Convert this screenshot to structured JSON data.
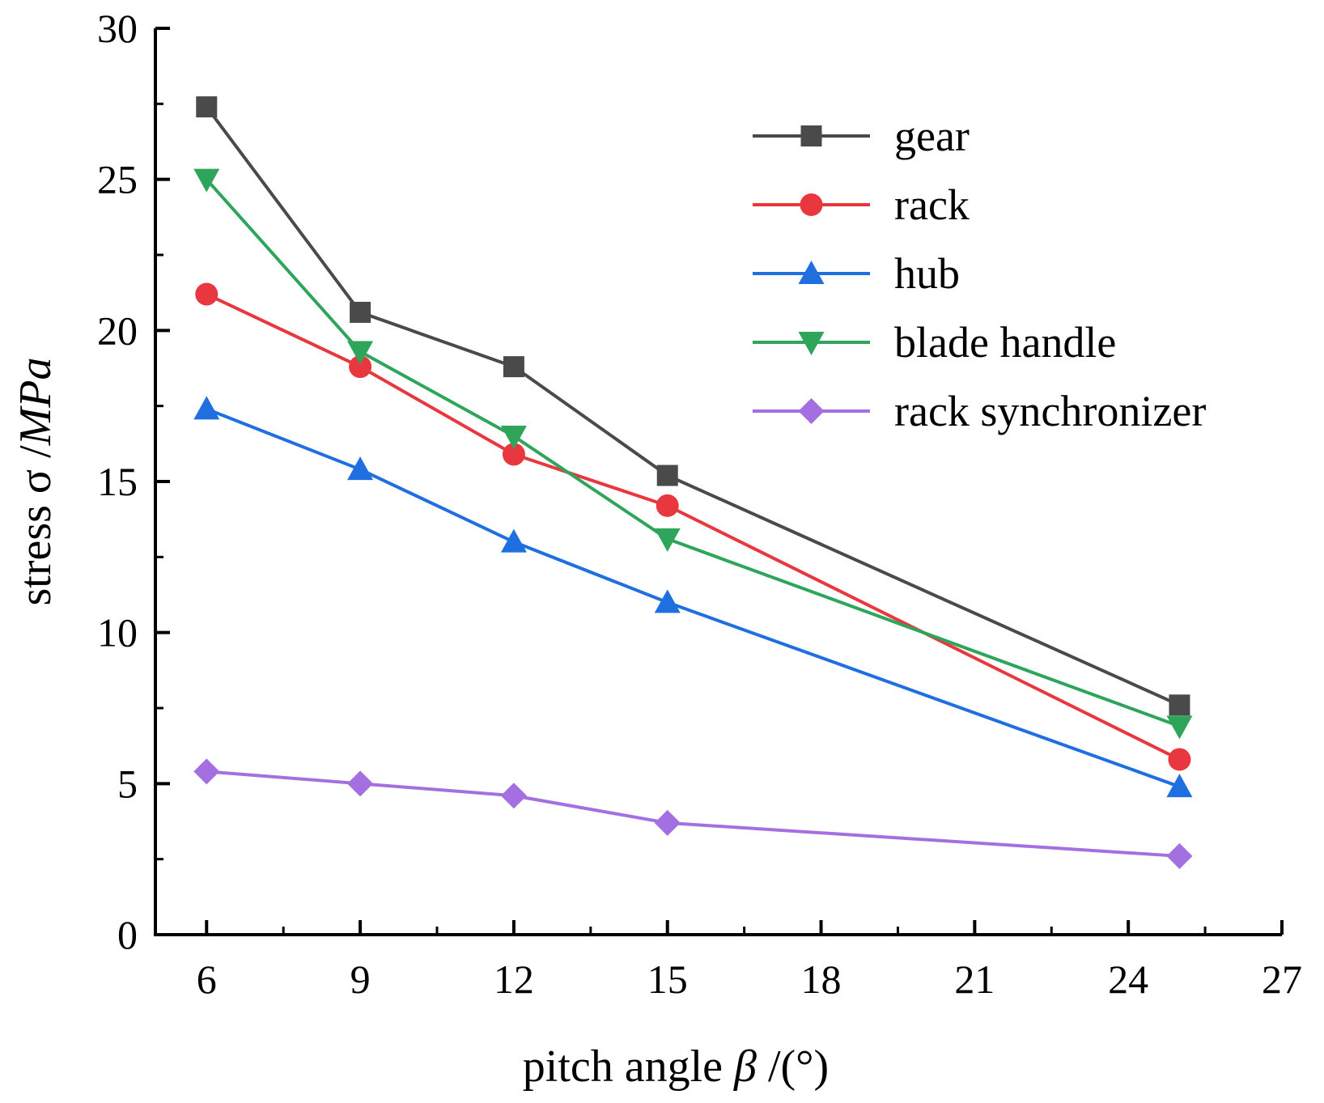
{
  "chart_data": {
    "type": "line",
    "title": "",
    "x": [
      6,
      9,
      12,
      15,
      25
    ],
    "xlabel": {
      "prefix": "pitch angle ",
      "symbol": "β",
      "suffix": " /(°)"
    },
    "ylabel": {
      "prefix": "stress σ /",
      "unit": "MPa"
    },
    "xlim": [
      5,
      27
    ],
    "ylim": [
      0,
      30
    ],
    "xticks": [
      6,
      9,
      12,
      15,
      18,
      21,
      24,
      27
    ],
    "yticks": [
      0,
      5,
      10,
      15,
      20,
      25,
      30
    ],
    "legend_position": "top-right",
    "grid": false,
    "series": [
      {
        "name": "gear",
        "color": "#4a4a4a",
        "marker": "square",
        "values": [
          27.4,
          20.6,
          18.8,
          15.2,
          7.6
        ]
      },
      {
        "name": "rack",
        "color": "#e8373e",
        "marker": "circle",
        "values": [
          21.2,
          18.8,
          15.9,
          14.2,
          5.8
        ]
      },
      {
        "name": "hub",
        "color": "#1f6fe0",
        "marker": "triangle-up",
        "values": [
          17.4,
          15.4,
          13.0,
          11.0,
          4.9
        ]
      },
      {
        "name": "blade handle",
        "color": "#2ea55a",
        "marker": "triangle-down",
        "values": [
          25.0,
          19.3,
          16.5,
          13.1,
          6.9
        ]
      },
      {
        "name": "rack synchronizer",
        "color": "#a46fe0",
        "marker": "diamond",
        "values": [
          5.4,
          5.0,
          4.6,
          3.7,
          2.6
        ]
      }
    ]
  }
}
